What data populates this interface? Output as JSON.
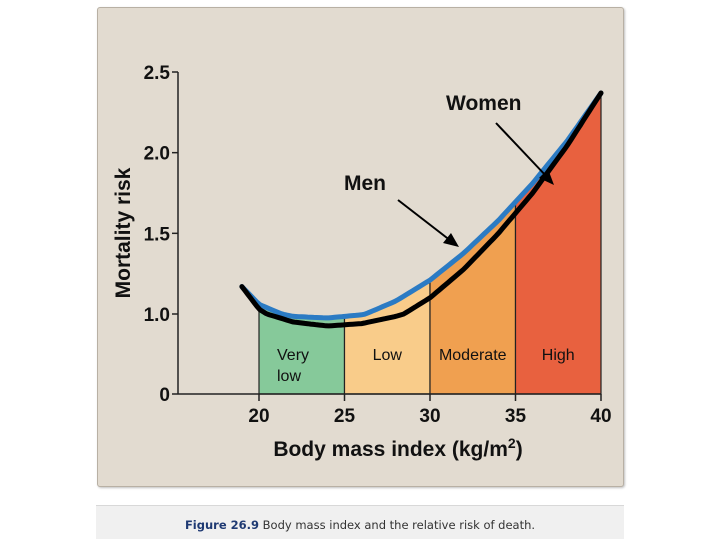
{
  "chart_data": {
    "type": "line",
    "xlabel_main": "Body mass index (kg/m",
    "xlabel_sup": "2",
    "xlabel_end": ")",
    "ylabel": "Mortality risk",
    "xlim": [
      20,
      40
    ],
    "ylim": [
      0,
      2.5
    ],
    "x_ticks": [
      "20",
      "25",
      "30",
      "35",
      "40"
    ],
    "y_ticks": [
      "0",
      "1.0",
      "1.5",
      "2.0",
      "2.5"
    ],
    "zones": [
      {
        "label": [
          "Very",
          "low"
        ],
        "x_start": 20,
        "x_end": 25,
        "color": "#86c99a"
      },
      {
        "label": [
          "Low"
        ],
        "x_start": 25,
        "x_end": 30,
        "color": "#f9cc8a"
      },
      {
        "label": [
          "Moderate"
        ],
        "x_start": 30,
        "x_end": 35,
        "color": "#f0a050"
      },
      {
        "label": [
          "High"
        ],
        "x_start": 35,
        "x_end": 40,
        "color": "#e8613f"
      }
    ],
    "series": [
      {
        "name": "Women",
        "color": "#2b7bc4",
        "x": [
          19,
          20,
          22,
          24,
          26,
          28,
          30,
          32,
          34,
          36,
          38,
          40
        ],
        "y": [
          1.17,
          1.06,
          0.97,
          0.95,
          0.99,
          1.08,
          1.21,
          1.38,
          1.58,
          1.81,
          2.07,
          2.37
        ]
      },
      {
        "name": "Men",
        "color": "#000000",
        "x": [
          19,
          20,
          22,
          24,
          26,
          28,
          30,
          32,
          34,
          36,
          38,
          40
        ],
        "y": [
          1.17,
          1.03,
          0.9,
          0.85,
          0.88,
          0.97,
          1.1,
          1.28,
          1.5,
          1.75,
          2.04,
          2.37
        ]
      }
    ]
  },
  "annotations": {
    "women": "Women",
    "men": "Men"
  },
  "caption": {
    "label": "Figure 26.9",
    "text": " Body mass index and the relative risk of death."
  }
}
